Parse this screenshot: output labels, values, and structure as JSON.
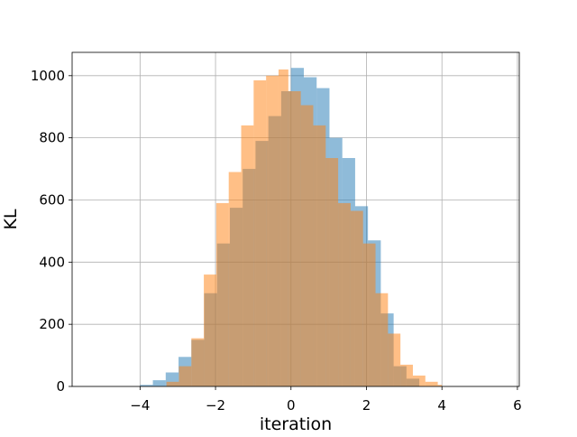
{
  "chart_data": {
    "type": "bar",
    "subtype": "overlapping-histogram",
    "title": "",
    "xlabel": "iteration",
    "ylabel": "KL",
    "xlim": [
      -5.8,
      6.05
    ],
    "ylim": [
      0,
      1075
    ],
    "xticks": [
      -4,
      -2,
      0,
      2,
      4,
      6
    ],
    "xtick_labels": [
      "−4",
      "−2",
      "0",
      "2",
      "4",
      "6"
    ],
    "yticks": [
      0,
      200,
      400,
      600,
      800,
      1000
    ],
    "ytick_labels": [
      "0",
      "200",
      "400",
      "600",
      "800",
      "1000"
    ],
    "grid": true,
    "legend": "none",
    "series": [
      {
        "color": "#1f77b4",
        "opacity": 0.5,
        "bin_edges": [
          -4.0,
          -3.66,
          -3.32,
          -2.98,
          -2.64,
          -2.3,
          -1.96,
          -1.62,
          -1.28,
          -0.94,
          -0.6,
          -0.26,
          0.0,
          0.34,
          0.68,
          1.02,
          1.36,
          1.7,
          2.04,
          2.38,
          2.72,
          3.06,
          3.4
        ],
        "values": [
          5,
          20,
          45,
          95,
          150,
          300,
          460,
          575,
          700,
          790,
          870,
          950,
          1025,
          995,
          960,
          800,
          735,
          580,
          470,
          235,
          65,
          25
        ]
      },
      {
        "color": "#ff7f0e",
        "opacity": 0.5,
        "bin_edges": [
          -3.3,
          -2.97,
          -2.64,
          -2.31,
          -1.98,
          -1.65,
          -1.32,
          -0.99,
          -0.66,
          -0.33,
          -0.07,
          0.26,
          0.59,
          0.92,
          1.25,
          1.58,
          1.91,
          2.24,
          2.57,
          2.9,
          3.23,
          3.56,
          3.89,
          4.0
        ],
        "values": [
          15,
          65,
          155,
          360,
          590,
          690,
          840,
          985,
          1000,
          1020,
          950,
          905,
          840,
          735,
          590,
          565,
          460,
          300,
          170,
          70,
          35,
          15,
          5
        ]
      }
    ]
  }
}
